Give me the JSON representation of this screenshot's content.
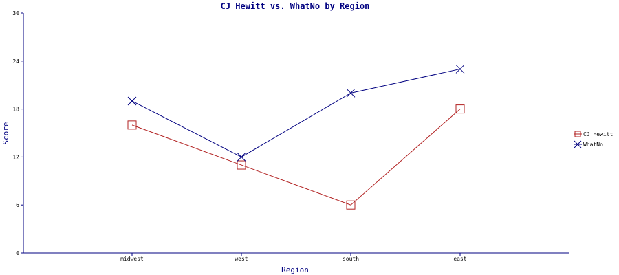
{
  "chart_data": {
    "type": "line",
    "title": "CJ Hewitt vs. WhatNo by Region",
    "xlabel": "Region",
    "ylabel": "Score",
    "categories": [
      "midwest",
      "west",
      "south",
      "east"
    ],
    "ylim": [
      0,
      30
    ],
    "yticks": [
      0,
      6,
      12,
      18,
      24,
      30
    ],
    "grid": false,
    "legend_position": "right",
    "series": [
      {
        "name": "CJ Hewitt",
        "values": [
          16,
          11,
          6,
          18
        ],
        "color": "#b22222",
        "marker": "square"
      },
      {
        "name": "WhatNo",
        "values": [
          19,
          12,
          20,
          23
        ],
        "color": "#000080",
        "marker": "x"
      }
    ]
  },
  "colors": {
    "axis": "#000080",
    "title": "#000080"
  }
}
